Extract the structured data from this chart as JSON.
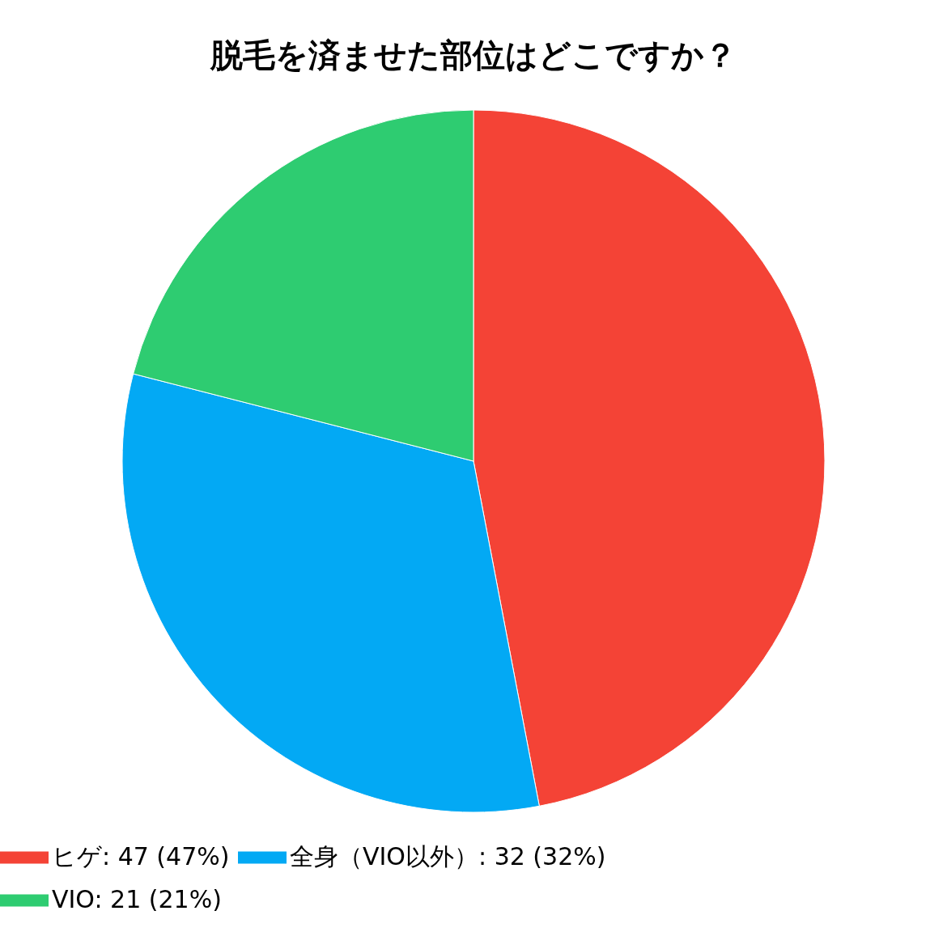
{
  "chart_data": {
    "type": "pie",
    "title": "脱毛を済ませた部位はどこですか？",
    "categories": [
      "ヒゲ: 47 (47%)",
      "全身（VIO以外）: 32 (32%)",
      "VIO: 21 (21%)"
    ],
    "values": [
      47,
      32,
      21
    ],
    "colors": [
      "#f44336",
      "#03a9f4",
      "#2ecc71"
    ],
    "legend": "bottom"
  }
}
